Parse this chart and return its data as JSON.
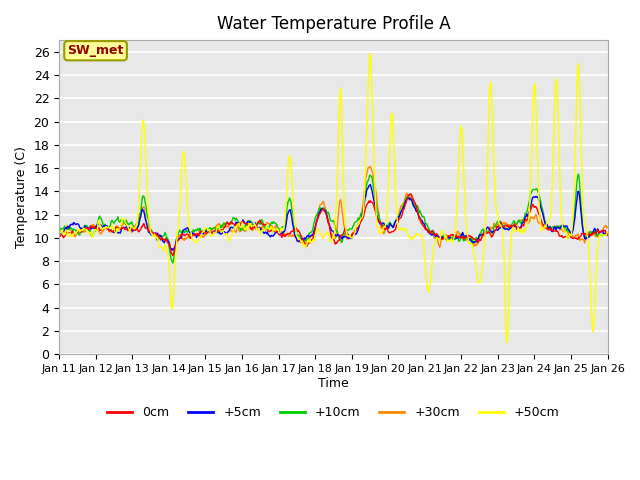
{
  "title": "Water Temperature Profile A",
  "xlabel": "Time",
  "ylabel": "Temperature (C)",
  "ylim": [
    0,
    27
  ],
  "yticks": [
    0,
    2,
    4,
    6,
    8,
    10,
    12,
    14,
    16,
    18,
    20,
    22,
    24,
    26
  ],
  "x_labels": [
    "Jan 11",
    "Jan 12",
    "Jan 13",
    "Jan 14",
    "Jan 15",
    "Jan 16",
    "Jan 17",
    "Jan 18",
    "Jan 19",
    "Jan 20",
    "Jan 21",
    "Jan 22",
    "Jan 23",
    "Jan 24",
    "Jan 25",
    "Jan 26"
  ],
  "legend_labels": [
    "0cm",
    "+5cm",
    "+10cm",
    "+30cm",
    "+50cm"
  ],
  "line_colors": [
    "#ff0000",
    "#0000ff",
    "#00cc00",
    "#ff8800",
    "#ffff00"
  ],
  "plot_bg": "#e8e8e8",
  "label_box_facecolor": "#ffff99",
  "label_box_edgecolor": "#999900",
  "label_text_color": "#990000",
  "label_text": "SW_met",
  "n_points": 720,
  "seed": 7
}
